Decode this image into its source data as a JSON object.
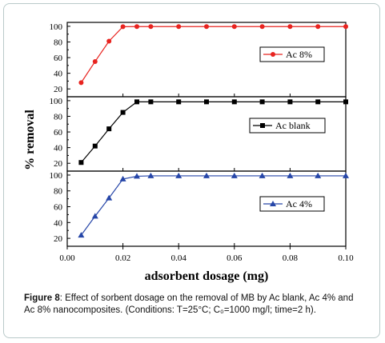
{
  "chart_data": {
    "type": "line",
    "x": [
      0.005,
      0.01,
      0.015,
      0.02,
      0.025,
      0.03,
      0.04,
      0.05,
      0.06,
      0.07,
      0.08,
      0.09,
      0.1
    ],
    "xlim": [
      0.0,
      0.1
    ],
    "xticks": [
      "0.00",
      "0.02",
      "0.04",
      "0.06",
      "0.08",
      "0.10"
    ],
    "xlabel": "adsorbent dosage (mg)",
    "ylabel": "% removal",
    "ylim": [
      10,
      105
    ],
    "yticks": [
      "20",
      "40",
      "60",
      "80",
      "100"
    ],
    "legend_position": "top-right",
    "panels": [
      {
        "name": "Ac 8%",
        "color": "#e8231f",
        "marker": "circle",
        "values": [
          28,
          55,
          81,
          99.5,
          99.6,
          99.6,
          99.6,
          99.6,
          99.6,
          99.6,
          99.6,
          99.6,
          99.6
        ]
      },
      {
        "name": "Ac blank",
        "color": "#000000",
        "marker": "square",
        "values": [
          21,
          42,
          64,
          85,
          98.5,
          98.5,
          98.5,
          98.5,
          98.5,
          98.5,
          98.5,
          98.5,
          98.5
        ]
      },
      {
        "name": "Ac 4%",
        "color": "#2646a8",
        "marker": "triangle",
        "values": [
          24,
          48,
          71,
          95,
          98.5,
          99,
          99,
          99,
          99,
          99,
          99,
          99,
          99
        ]
      }
    ]
  },
  "caption": {
    "label": "Figure 8",
    "text": ": Effect of sorbent dosage on the removal of MB by Ac blank, Ac 4% and Ac 8% nanocomposites. (Conditions: T=25°C; C₀=1000 mg/l; time=2 h)."
  }
}
